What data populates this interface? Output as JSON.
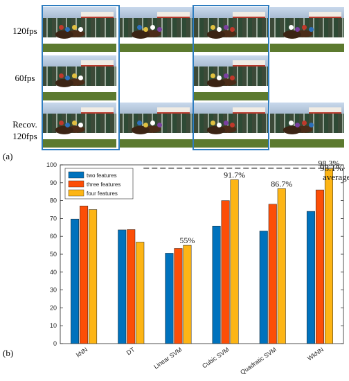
{
  "panel_a": {
    "tag": "(a)",
    "rows": [
      {
        "label": "120fps",
        "frames": 4
      },
      {
        "label": "60fps",
        "frames": 2
      },
      {
        "label": "Recov.\n120fps",
        "frames": 4
      }
    ]
  },
  "panel_b": {
    "tag": "(b)"
  },
  "chart_data": {
    "type": "bar",
    "categories": [
      "kNN",
      "DT",
      "Linear SVM",
      "Cubic SVM",
      "Quadratic SVM",
      "WkNN"
    ],
    "series": [
      {
        "name": "two features",
        "color": "#0072bd",
        "values": [
          69.7,
          63.6,
          50.6,
          65.8,
          63.0,
          74.0
        ]
      },
      {
        "name": "three features",
        "color": "#fc4e07",
        "values": [
          77.0,
          63.8,
          53.3,
          80.0,
          78.0,
          86.0
        ]
      },
      {
        "name": "four features",
        "color": "#fdb515",
        "values": [
          75.0,
          56.8,
          55.0,
          91.7,
          86.7,
          98.3
        ]
      }
    ],
    "ylim": [
      0,
      100
    ],
    "yticks": [
      0,
      10,
      20,
      30,
      40,
      50,
      60,
      70,
      80,
      90,
      100
    ],
    "legend": "top-left",
    "grid": false,
    "annotations": [
      {
        "text": "55%",
        "category": "Linear SVM"
      },
      {
        "text": "91.7%",
        "category": "Cubic SVM"
      },
      {
        "text": "86.7%",
        "category": "Quadratic SVM"
      },
      {
        "text": "98.3%",
        "category": "WkNN"
      }
    ],
    "reference_line": {
      "value": 98.1,
      "label": "98.1%",
      "sublabel": "average",
      "style": "dashed",
      "color": "#7f7f7f"
    }
  }
}
